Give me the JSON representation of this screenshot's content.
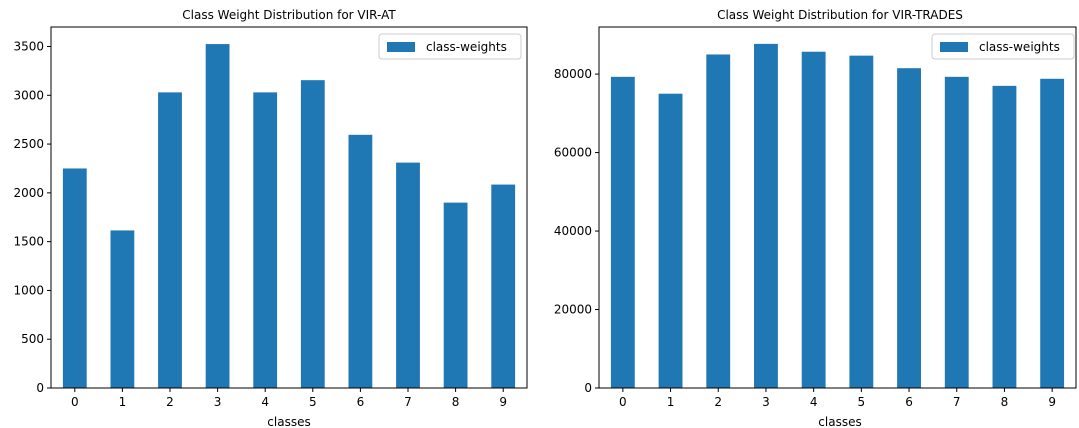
{
  "chart_data": [
    {
      "type": "bar",
      "title": "Class Weight Distribution for VIR-AT",
      "xlabel": "classes",
      "ylabel": "",
      "categories": [
        "0",
        "1",
        "2",
        "3",
        "4",
        "5",
        "6",
        "7",
        "8",
        "9"
      ],
      "series": [
        {
          "name": "class-weights",
          "values": [
            2250,
            1615,
            3030,
            3525,
            3030,
            3155,
            2595,
            2310,
            1900,
            2085
          ]
        }
      ],
      "ylim": [
        0,
        3700
      ],
      "yticks": [
        0,
        500,
        1000,
        1500,
        2000,
        2500,
        3000,
        3500
      ],
      "ytick_labels": [
        "0",
        "500",
        "1000",
        "1500",
        "2000",
        "2500",
        "3000",
        "3500"
      ],
      "grid": false,
      "legend": "upper-right",
      "color": "#1f77b4"
    },
    {
      "type": "bar",
      "title": "Class Weight Distribution for VIR-TRADES",
      "xlabel": "classes",
      "ylabel": "",
      "categories": [
        "0",
        "1",
        "2",
        "3",
        "4",
        "5",
        "6",
        "7",
        "8",
        "9"
      ],
      "series": [
        {
          "name": "class-weights",
          "values": [
            79300,
            75000,
            85000,
            87700,
            85700,
            84700,
            81500,
            79300,
            77000,
            78800
          ]
        }
      ],
      "ylim": [
        0,
        92000
      ],
      "yticks": [
        0,
        20000,
        40000,
        60000,
        80000
      ],
      "ytick_labels": [
        "0",
        "20000",
        "40000",
        "60000",
        "80000"
      ],
      "grid": false,
      "legend": "upper-right",
      "color": "#1f77b4"
    }
  ]
}
